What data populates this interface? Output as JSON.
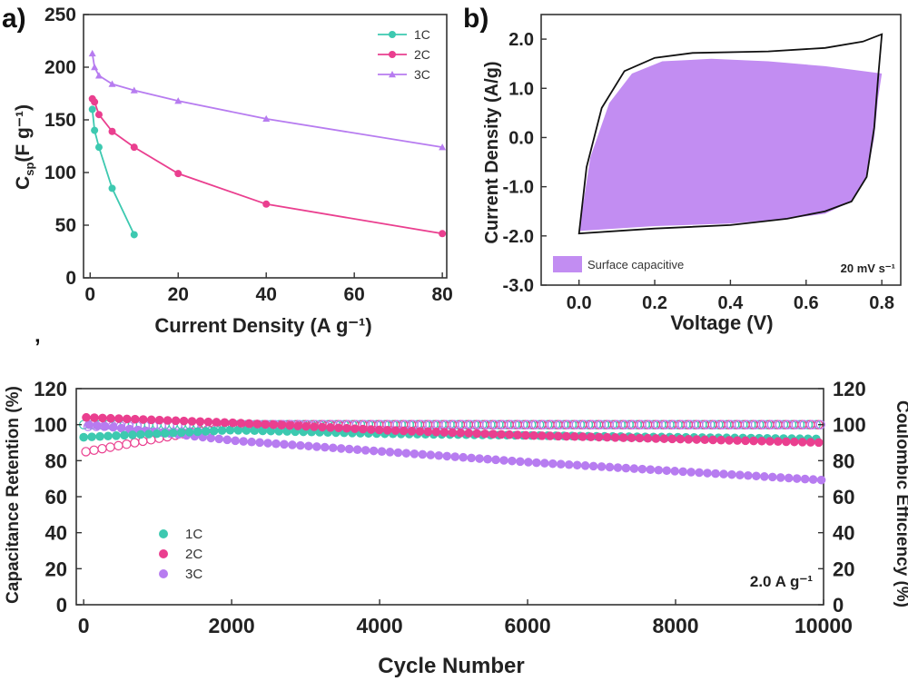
{
  "figure": {
    "panel_a_tag": "a)",
    "panel_b_tag": "b)",
    "panel_c_tag": "ʼ"
  },
  "colors": {
    "c1": "#3dc9b0",
    "c2": "#ea3f8f",
    "c3": "#b77cf0",
    "fill_b": "#c28df2",
    "axis": "#333333"
  },
  "chart_data": [
    {
      "id": "a",
      "type": "line",
      "xlabel": "Current Density (A g⁻¹)",
      "ylabel_main": "C",
      "ylabel_sub": "sp",
      "ylabel_rest": "(F g⁻¹)",
      "xlim": [
        0,
        80
      ],
      "ylim": [
        0,
        250
      ],
      "xticks": [
        "0",
        "20",
        "40",
        "60",
        "80"
      ],
      "yticks": [
        "0",
        "50",
        "100",
        "150",
        "200",
        "250"
      ],
      "legend_position": "top-right",
      "series": [
        {
          "name": "1C",
          "color": "#3dc9b0",
          "marker": "circle",
          "x": [
            0.5,
            1,
            2,
            5,
            10
          ],
          "y": [
            160,
            140,
            124,
            85,
            41
          ]
        },
        {
          "name": "2C",
          "color": "#ea3f8f",
          "marker": "circle",
          "x": [
            0.5,
            1,
            2,
            5,
            10,
            20,
            40,
            80
          ],
          "y": [
            170,
            167,
            155,
            139,
            124,
            99,
            70,
            42
          ]
        },
        {
          "name": "3C",
          "color": "#b77cf0",
          "marker": "triangle",
          "x": [
            0.5,
            1,
            2,
            5,
            10,
            20,
            40,
            80
          ],
          "y": [
            213,
            200,
            192,
            184,
            178,
            168,
            151,
            124
          ]
        }
      ]
    },
    {
      "id": "b",
      "type": "area",
      "xlabel": "Voltage (V)",
      "ylabel": "Current Density (A/g)",
      "xlim": [
        -0.1,
        0.85
      ],
      "ylim": [
        -3.0,
        2.5
      ],
      "xticks": [
        "0.0",
        "0.2",
        "0.4",
        "0.6",
        "0.8"
      ],
      "yticks": [
        "-3.0",
        "-2.0",
        "-1.0",
        "0.0",
        "1.0",
        "2.0"
      ],
      "legend": "Surface capacitive",
      "annotation": "20 mV s⁻¹",
      "legend_position": "bottom-left",
      "cv_curve": {
        "upper": [
          [
            0.0,
            -1.95
          ],
          [
            0.02,
            -0.6
          ],
          [
            0.06,
            0.6
          ],
          [
            0.12,
            1.35
          ],
          [
            0.2,
            1.62
          ],
          [
            0.3,
            1.72
          ],
          [
            0.5,
            1.75
          ],
          [
            0.65,
            1.82
          ],
          [
            0.75,
            1.95
          ],
          [
            0.8,
            2.1
          ]
        ],
        "lower": [
          [
            0.0,
            -1.95
          ],
          [
            0.2,
            -1.85
          ],
          [
            0.4,
            -1.78
          ],
          [
            0.55,
            -1.65
          ],
          [
            0.65,
            -1.5
          ],
          [
            0.72,
            -1.3
          ],
          [
            0.76,
            -0.8
          ],
          [
            0.78,
            0.2
          ],
          [
            0.79,
            1.2
          ],
          [
            0.8,
            2.1
          ]
        ]
      },
      "surface_capacitive": {
        "upper": [
          [
            0.0,
            -1.9
          ],
          [
            0.03,
            -0.4
          ],
          [
            0.08,
            0.7
          ],
          [
            0.14,
            1.3
          ],
          [
            0.22,
            1.55
          ],
          [
            0.35,
            1.6
          ],
          [
            0.5,
            1.55
          ],
          [
            0.65,
            1.45
          ],
          [
            0.75,
            1.35
          ],
          [
            0.8,
            1.3
          ]
        ],
        "lower": [
          [
            0.0,
            -1.9
          ],
          [
            0.2,
            -1.8
          ],
          [
            0.4,
            -1.75
          ],
          [
            0.55,
            -1.65
          ],
          [
            0.65,
            -1.55
          ],
          [
            0.72,
            -1.3
          ],
          [
            0.76,
            -0.8
          ],
          [
            0.78,
            0.0
          ],
          [
            0.79,
            0.8
          ],
          [
            0.8,
            1.3
          ]
        ]
      }
    },
    {
      "id": "c",
      "type": "scatter",
      "xlabel": "Cycle Number",
      "ylabel": "Capacitance Retention (%)",
      "ylabel_right": "Coulombic Efficiency (%)",
      "xlim": [
        0,
        10000
      ],
      "ylim": [
        0,
        120
      ],
      "xticks": [
        "0",
        "2000",
        "4000",
        "6000",
        "8000",
        "10000"
      ],
      "yticks": [
        "0",
        "20",
        "40",
        "60",
        "80",
        "100",
        "120"
      ],
      "annotation": "2.0 A g⁻¹",
      "legend_position": "bottom-left",
      "series": [
        {
          "name": "1C",
          "color": "#3dc9b0",
          "x": [
            0,
            2000,
            4000,
            6000,
            8000,
            10000
          ],
          "retention": [
            93,
            97,
            95,
            94,
            93,
            92
          ],
          "efficiency": [
            100,
            100,
            100,
            100,
            100,
            100
          ]
        },
        {
          "name": "2C",
          "color": "#ea3f8f",
          "x": [
            0,
            2000,
            4000,
            6000,
            8000,
            10000
          ],
          "retention": [
            104,
            101,
            97,
            94,
            92,
            90
          ],
          "efficiency": [
            85,
            100,
            100,
            100,
            100,
            100
          ]
        },
        {
          "name": "3C",
          "color": "#b77cf0",
          "x": [
            0,
            2000,
            4000,
            6000,
            8000,
            10000
          ],
          "retention": [
            100,
            91,
            85,
            79,
            74,
            69
          ],
          "efficiency": [
            99,
            100,
            100,
            100,
            100,
            100
          ]
        }
      ]
    }
  ]
}
